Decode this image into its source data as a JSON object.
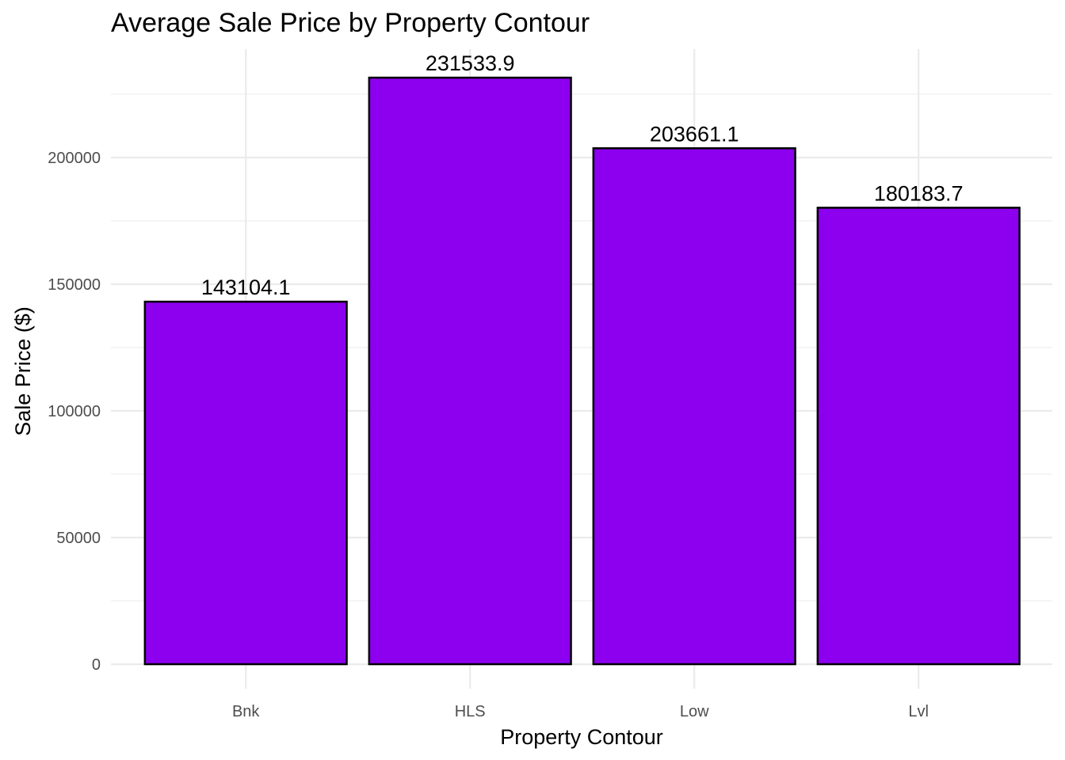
{
  "chart_data": {
    "type": "bar",
    "title": "Average Sale Price by Property Contour",
    "xlabel": "Property Contour",
    "ylabel": "Sale Price ($)",
    "categories": [
      "Bnk",
      "HLS",
      "Low",
      "Lvl"
    ],
    "values": [
      143104.1,
      231533.9,
      203661.1,
      180183.7
    ],
    "data_labels": [
      "143104.1",
      "231533.9",
      "203661.1",
      "180183.7"
    ],
    "y_ticks": [
      0,
      50000,
      100000,
      150000,
      200000
    ],
    "y_tick_labels": [
      "0",
      "50000",
      "100000",
      "150000",
      "200000"
    ],
    "ylim": [
      0,
      243000
    ],
    "bar_color": "#8c00ef",
    "bar_outline": "#000000",
    "grid": true,
    "legend": "none"
  }
}
